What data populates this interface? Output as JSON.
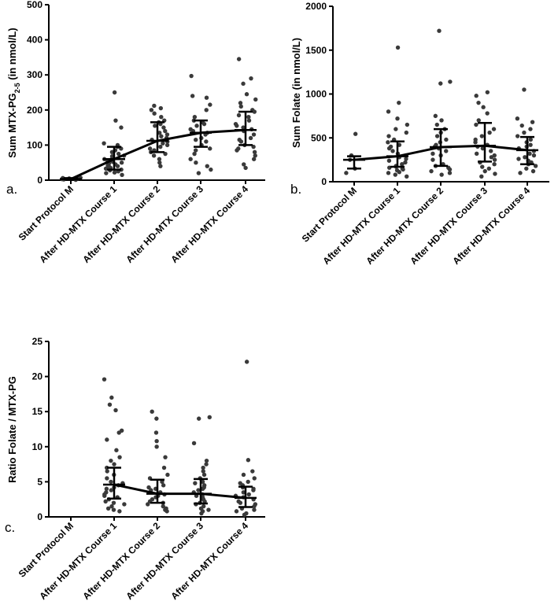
{
  "chart_data": [
    {
      "panel_label": "a.",
      "type": "scatter",
      "ylabel_main": "Sum MTX-PG",
      "ylabel_sub": "2-5",
      "ylabel_tail": " (in nmol/L)",
      "categories": [
        "Start Protocol M",
        "After HD-MTX Course 1",
        "After HD-MTX Course 2",
        "After HD-MTX Course 3",
        "After HD-MTX Course 4"
      ],
      "ylim": [
        0,
        500
      ],
      "yticks": [
        0,
        100,
        200,
        300,
        400,
        500
      ],
      "medians": [
        3,
        60,
        112,
        135,
        143
      ],
      "q1": [
        2,
        30,
        80,
        95,
        100
      ],
      "q3": [
        6,
        95,
        165,
        170,
        195
      ],
      "points": [
        [
          1,
          3,
          5,
          8,
          2,
          4,
          6,
          7
        ],
        [
          250,
          170,
          150,
          105,
          100,
          95,
          90,
          85,
          80,
          75,
          70,
          68,
          65,
          62,
          60,
          58,
          55,
          52,
          50,
          48,
          45,
          42,
          40,
          38,
          35,
          33,
          30,
          28,
          25,
          22,
          20,
          15
        ],
        [
          212,
          205,
          200,
          190,
          180,
          170,
          165,
          160,
          155,
          150,
          140,
          135,
          130,
          125,
          120,
          115,
          110,
          105,
          100,
          95,
          90,
          85,
          80,
          75,
          70,
          60,
          50,
          40
        ],
        [
          297,
          240,
          235,
          215,
          200,
          180,
          170,
          165,
          160,
          155,
          145,
          140,
          135,
          130,
          120,
          115,
          110,
          100,
          90,
          85,
          75,
          60,
          50,
          40,
          30,
          20
        ],
        [
          345,
          290,
          275,
          245,
          230,
          220,
          210,
          200,
          195,
          185,
          180,
          170,
          160,
          155,
          150,
          145,
          140,
          130,
          120,
          115,
          110,
          100,
          95,
          90,
          85,
          80,
          70,
          60,
          45,
          35
        ]
      ]
    },
    {
      "panel_label": "b.",
      "type": "scatter",
      "ylabel": "Sum Folate (in nmol/L)",
      "categories": [
        "Start Protocol M",
        "After HD-MTX Course 1",
        "After HD-MTX Course 2",
        "After HD-MTX Course 3",
        "After HD-MTX Course 4"
      ],
      "ylim": [
        0,
        2000
      ],
      "yticks": [
        0,
        500,
        1000,
        1500,
        2000
      ],
      "medians": [
        250,
        290,
        395,
        410,
        360
      ],
      "q1": [
        150,
        170,
        180,
        230,
        200
      ],
      "q3": [
        290,
        460,
        600,
        670,
        510
      ],
      "points": [
        [
          545,
          300,
          250,
          150,
          100
        ],
        [
          1530,
          900,
          800,
          720,
          650,
          600,
          560,
          520,
          480,
          450,
          420,
          400,
          380,
          350,
          320,
          300,
          280,
          260,
          240,
          220,
          200,
          180,
          170,
          160,
          150,
          140,
          130,
          110,
          100,
          80,
          60
        ],
        [
          1720,
          1140,
          1120,
          750,
          700,
          650,
          600,
          560,
          520,
          480,
          450,
          420,
          400,
          380,
          350,
          320,
          300,
          250,
          200,
          180,
          160,
          140,
          120,
          100,
          80
        ],
        [
          1020,
          980,
          900,
          850,
          780,
          700,
          650,
          600,
          560,
          520,
          480,
          450,
          420,
          400,
          380,
          350,
          320,
          300,
          280,
          250,
          220,
          200,
          170,
          150,
          120,
          90,
          60
        ],
        [
          1050,
          720,
          680,
          640,
          600,
          560,
          520,
          480,
          450,
          420,
          400,
          380,
          350,
          320,
          300,
          280,
          260,
          240,
          220,
          200,
          180,
          150,
          120,
          100
        ]
      ]
    },
    {
      "panel_label": "c.",
      "type": "scatter",
      "ylabel": "Ratio Folate / MTX-PG",
      "categories": [
        "Start Protocol M",
        "After HD-MTX Course 1",
        "After HD-MTX Course 2",
        "After HD-MTX Course 3",
        "After HD-MTX Course 4"
      ],
      "ylim": [
        0,
        25
      ],
      "yticks": [
        0,
        5,
        10,
        15,
        20,
        25
      ],
      "medians": [
        null,
        4.6,
        3.3,
        3.3,
        2.7
      ],
      "q1": [
        null,
        2.6,
        2.0,
        1.9,
        1.4
      ],
      "q3": [
        null,
        7.0,
        5.3,
        5.4,
        4.3
      ],
      "points": [
        [],
        [
          19.6,
          17.0,
          16.0,
          15.2,
          12.3,
          12.0,
          11.0,
          9.5,
          8.5,
          8.0,
          7.5,
          7.0,
          6.5,
          6.0,
          5.5,
          5.0,
          4.8,
          4.5,
          4.2,
          4.0,
          3.8,
          3.5,
          3.2,
          3.0,
          2.8,
          2.5,
          2.2,
          2.0,
          1.8,
          1.5,
          1.2,
          1.0,
          0.8
        ],
        [
          15.0,
          14.0,
          12.0,
          10.8,
          10.0,
          8.5,
          7.0,
          6.0,
          5.5,
          5.0,
          4.5,
          4.2,
          4.0,
          3.8,
          3.5,
          3.2,
          3.0,
          2.8,
          2.5,
          2.2,
          2.0,
          1.8,
          1.5,
          1.2,
          1.0,
          0.8
        ],
        [
          14.2,
          14.0,
          10.5,
          8.0,
          7.5,
          7.0,
          6.5,
          6.0,
          5.5,
          5.0,
          4.8,
          4.5,
          4.2,
          4.0,
          3.8,
          3.5,
          3.2,
          3.0,
          2.8,
          2.5,
          2.2,
          2.0,
          1.8,
          1.5,
          1.2,
          1.0,
          0.8,
          0.5
        ],
        [
          22.1,
          8.1,
          6.5,
          6.0,
          5.5,
          5.0,
          4.8,
          4.5,
          4.2,
          4.0,
          3.8,
          3.5,
          3.2,
          3.0,
          2.8,
          2.5,
          2.2,
          2.0,
          1.8,
          1.5,
          1.2,
          1.0,
          0.8,
          0.5,
          0.3
        ]
      ]
    }
  ]
}
